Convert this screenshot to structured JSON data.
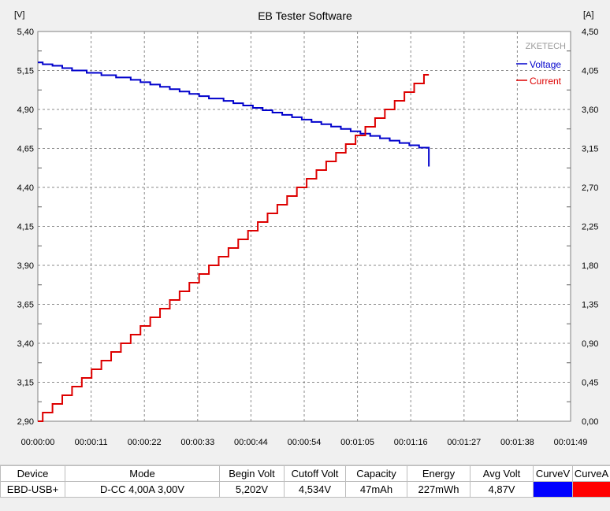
{
  "chart_data": {
    "type": "line",
    "title": "EB Tester Software",
    "watermark": "ZKETECH",
    "y_left_unit": "[V]",
    "y_right_unit": "[A]",
    "y_left_ticks": [
      "5,40",
      "5,15",
      "4,90",
      "4,65",
      "4,40",
      "4,15",
      "3,90",
      "3,65",
      "3,40",
      "3,15",
      "2,90"
    ],
    "y_right_ticks": [
      "4,50",
      "4,05",
      "3,60",
      "3,15",
      "2,70",
      "2,25",
      "1,80",
      "1,35",
      "0,90",
      "0,45",
      "0,00"
    ],
    "x_ticks": [
      "00:00:00",
      "00:00:11",
      "00:00:22",
      "00:00:33",
      "00:00:44",
      "00:00:54",
      "00:01:05",
      "00:01:16",
      "00:01:27",
      "00:01:38",
      "00:01:49"
    ],
    "x_range_seconds": [
      0,
      109
    ],
    "y_left_range": [
      2.9,
      5.4
    ],
    "y_right_range": [
      0.0,
      4.5
    ],
    "grid": true,
    "legend_position": "top-right",
    "series": [
      {
        "name": "Voltage",
        "axis": "left",
        "color": "#0000cc",
        "step": true,
        "x": [
          0,
          1,
          3,
          5,
          7,
          10,
          13,
          16,
          19,
          21,
          23,
          25,
          27,
          29,
          31,
          33,
          35,
          38,
          40,
          42,
          44,
          46,
          48,
          50,
          52,
          54,
          56,
          58,
          60,
          62,
          64,
          66,
          68,
          70,
          72,
          74,
          76,
          78,
          80
        ],
        "y": [
          5.202,
          5.19,
          5.18,
          5.165,
          5.15,
          5.135,
          5.12,
          5.105,
          5.09,
          5.075,
          5.06,
          5.045,
          5.03,
          5.015,
          5.0,
          4.985,
          4.97,
          4.955,
          4.94,
          4.925,
          4.91,
          4.895,
          4.88,
          4.865,
          4.85,
          4.835,
          4.82,
          4.805,
          4.79,
          4.775,
          4.76,
          4.745,
          4.73,
          4.715,
          4.7,
          4.685,
          4.67,
          4.655,
          4.534
        ]
      },
      {
        "name": "Current",
        "axis": "right",
        "color": "#dd0000",
        "step": true,
        "x": [
          0,
          1,
          3,
          5,
          7,
          9,
          11,
          13,
          15,
          17,
          19,
          21,
          23,
          25,
          27,
          29,
          31,
          33,
          35,
          37,
          39,
          41,
          43,
          45,
          47,
          49,
          51,
          53,
          55,
          57,
          59,
          61,
          63,
          65,
          67,
          69,
          71,
          73,
          75,
          77,
          79,
          80
        ],
        "y": [
          0.0,
          0.1,
          0.2,
          0.3,
          0.4,
          0.5,
          0.6,
          0.7,
          0.8,
          0.9,
          1.0,
          1.1,
          1.2,
          1.3,
          1.4,
          1.5,
          1.6,
          1.7,
          1.8,
          1.9,
          2.0,
          2.1,
          2.2,
          2.3,
          2.4,
          2.5,
          2.6,
          2.7,
          2.8,
          2.9,
          3.0,
          3.1,
          3.2,
          3.3,
          3.4,
          3.5,
          3.6,
          3.7,
          3.8,
          3.9,
          4.0,
          4.0
        ]
      }
    ]
  },
  "status": {
    "headers": [
      "Device",
      "Mode",
      "Begin Volt",
      "Cutoff Volt",
      "Capacity",
      "Energy",
      "Avg Volt",
      "CurveV",
      "CurveA"
    ],
    "values": [
      "EBD-USB+",
      "D-CC  4,00A  3,00V",
      "5,202V",
      "4,534V",
      "47mAh",
      "227mWh",
      "4,87V"
    ],
    "curveV_color": "#0000ff",
    "curveA_color": "#ff0000"
  }
}
